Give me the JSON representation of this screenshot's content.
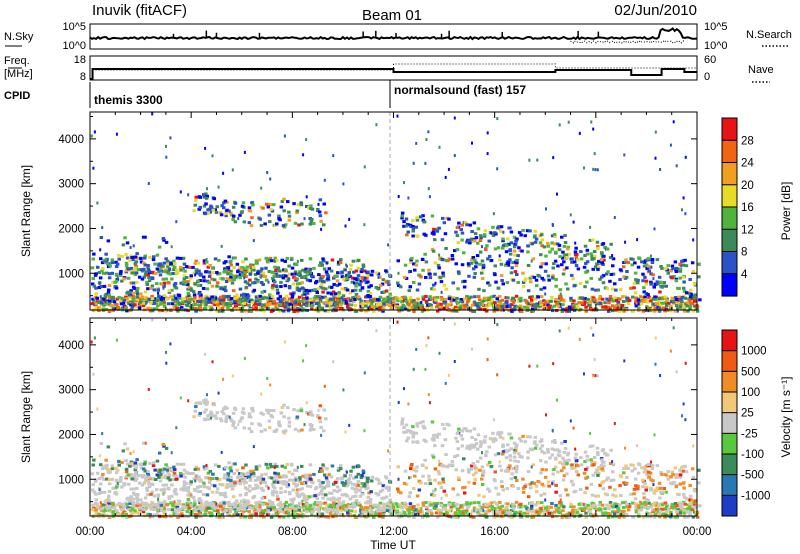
{
  "header": {
    "station": "Inuvik (fitACF)",
    "beam": "Beam 01",
    "date": "02/Jun/2010"
  },
  "noise_panel": {
    "left_label": "N.Sky",
    "left_ticks": [
      "10^5",
      "10^0"
    ],
    "right_ticks": [
      "10^5",
      "10^0"
    ],
    "right_label": "N.Search",
    "right_line_style": "dotted"
  },
  "freq_panel": {
    "left_label_1": "Freq.",
    "left_label_2": "[MHz]",
    "left_ticks": [
      "18",
      "8"
    ],
    "right_ticks": [
      "60",
      "0"
    ],
    "right_label": "Nave",
    "right_line_style": "dotted"
  },
  "cpid_panel": {
    "label": "CPID",
    "programs": [
      {
        "name": "themis 3300",
        "start_hour": 0
      },
      {
        "name": "normalsound (fast) 157",
        "start_hour": 12
      }
    ]
  },
  "time_axis": {
    "label": "Time UT",
    "range_hours": [
      0,
      24
    ],
    "ticks": [
      "00:00",
      "04:00",
      "08:00",
      "12:00",
      "16:00",
      "20:00",
      "00:00"
    ]
  },
  "chart_data": [
    {
      "type": "heatmap",
      "panel": "power",
      "ylabel": "Slant Range [km]",
      "xlabel": "Time UT",
      "y_ticks": [
        1000,
        2000,
        3000,
        4000
      ],
      "ylim": [
        180,
        4600
      ],
      "colorbar": {
        "label": "Power [dB]",
        "tick_labels": [
          "4",
          "8",
          "12",
          "16",
          "20",
          "24",
          "28"
        ],
        "colors": [
          "#0000ff",
          "#2c52c8",
          "#3c8a5a",
          "#50b43c",
          "#e6dc28",
          "#f0a01e",
          "#f06414",
          "#e61414"
        ]
      },
      "scatter_regions": [
        {
          "t": [
            0.0,
            24.0
          ],
          "r": [
            200,
            650
          ],
          "level": "moderate to strong"
        },
        {
          "t": [
            0.2,
            11.5
          ],
          "r": [
            600,
            1400
          ],
          "level": "moderate"
        },
        {
          "t": [
            4.0,
            6.3
          ],
          "r": [
            2300,
            2800
          ],
          "level": "moderate"
        },
        {
          "t": [
            6.6,
            9.2
          ],
          "r": [
            2000,
            2700
          ],
          "level": "moderate"
        },
        {
          "t": [
            12.2,
            20.5
          ],
          "r": [
            1300,
            2400
          ],
          "level": "moderate"
        },
        {
          "t": [
            12.0,
            23.5
          ],
          "r": [
            800,
            1400
          ],
          "level": "moderate"
        }
      ]
    },
    {
      "type": "heatmap",
      "panel": "velocity",
      "ylabel": "Slant Range [km]",
      "xlabel": "Time UT",
      "y_ticks": [
        1000,
        2000,
        3000,
        4000
      ],
      "ylim": [
        180,
        4600
      ],
      "colorbar": {
        "label": "Velocity [m s⁻¹]",
        "tick_labels": [
          "1000",
          "500",
          "100",
          "25",
          "-25",
          "-100",
          "-500",
          "-1000"
        ],
        "colors": [
          "#1e3cc8",
          "#2878b4",
          "#3c8c5a",
          "#5ac83c",
          "#c8c8c8",
          "#f0c878",
          "#f08c28",
          "#f05a14",
          "#e61414"
        ]
      },
      "ground_scatter_color": "#c8c8c8"
    }
  ]
}
